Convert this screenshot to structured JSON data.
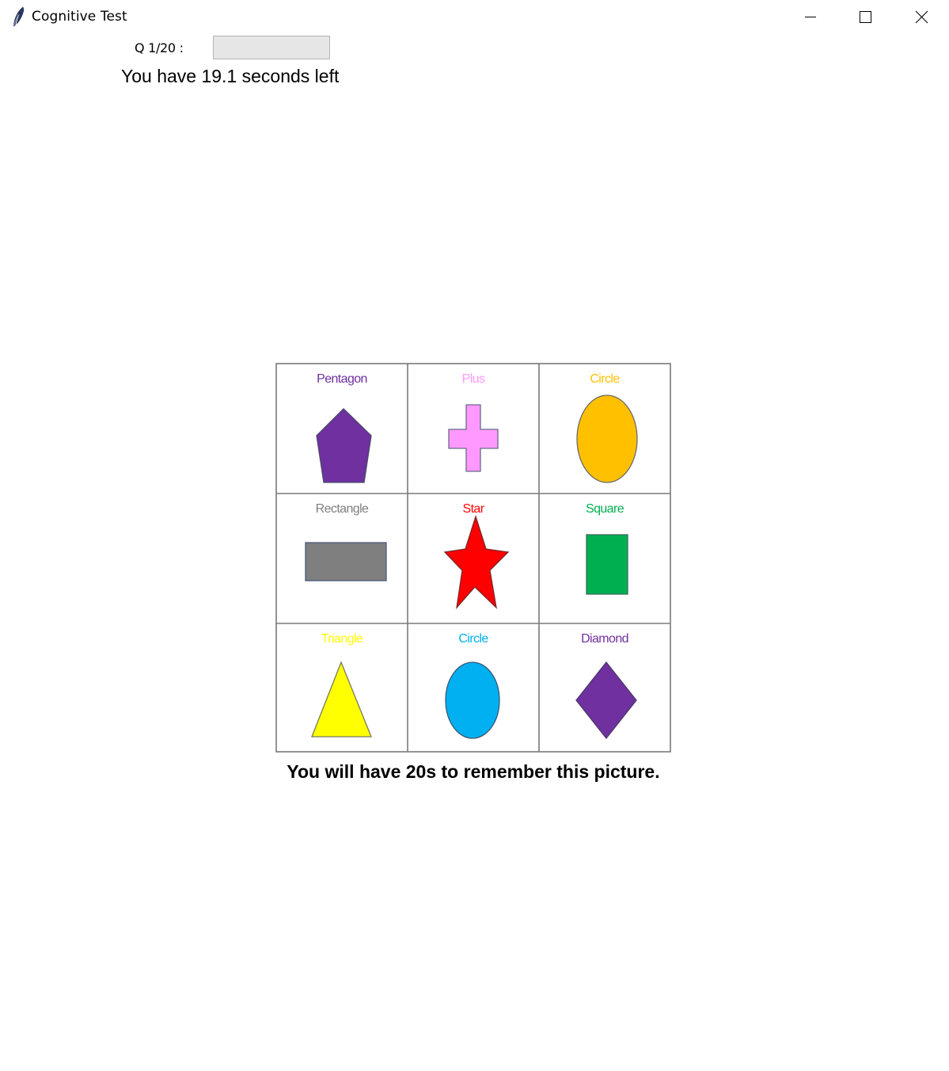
{
  "window": {
    "title": "Cognitive Test",
    "icon": "feather-icon",
    "controls": [
      "minimize-icon",
      "maximize-icon",
      "close-icon"
    ]
  },
  "question": {
    "label": "Q 1/20 :",
    "answer_value": ""
  },
  "timer": {
    "text": "You have 19.1 seconds left"
  },
  "picture": {
    "cells": [
      {
        "label": "Pentagon",
        "shape": "pentagon",
        "label_color": "#7030a0",
        "fill": "#7030a0"
      },
      {
        "label": "Plus",
        "shape": "plus",
        "label_color": "#ff99ff",
        "fill": "#ff99ff"
      },
      {
        "label": "Circle",
        "shape": "ellipse",
        "label_color": "#ffc000",
        "fill": "#ffc000"
      },
      {
        "label": "Rectangle",
        "shape": "rectangle",
        "label_color": "#7f7f7f",
        "fill": "#7f7f7f"
      },
      {
        "label": "Star",
        "shape": "star",
        "label_color": "#ff0000",
        "fill": "#ff0000"
      },
      {
        "label": "Square",
        "shape": "square",
        "label_color": "#00b050",
        "fill": "#00b050"
      },
      {
        "label": "Triangle",
        "shape": "triangle",
        "label_color": "#ffff00",
        "fill": "#ffff00"
      },
      {
        "label": "Circle",
        "shape": "ellipse",
        "label_color": "#00b0f0",
        "fill": "#00b0f0"
      },
      {
        "label": "Diamond",
        "shape": "diamond",
        "label_color": "#7030a0",
        "fill": "#7030a0"
      }
    ]
  },
  "caption": "You will have 20s to remember this picture."
}
